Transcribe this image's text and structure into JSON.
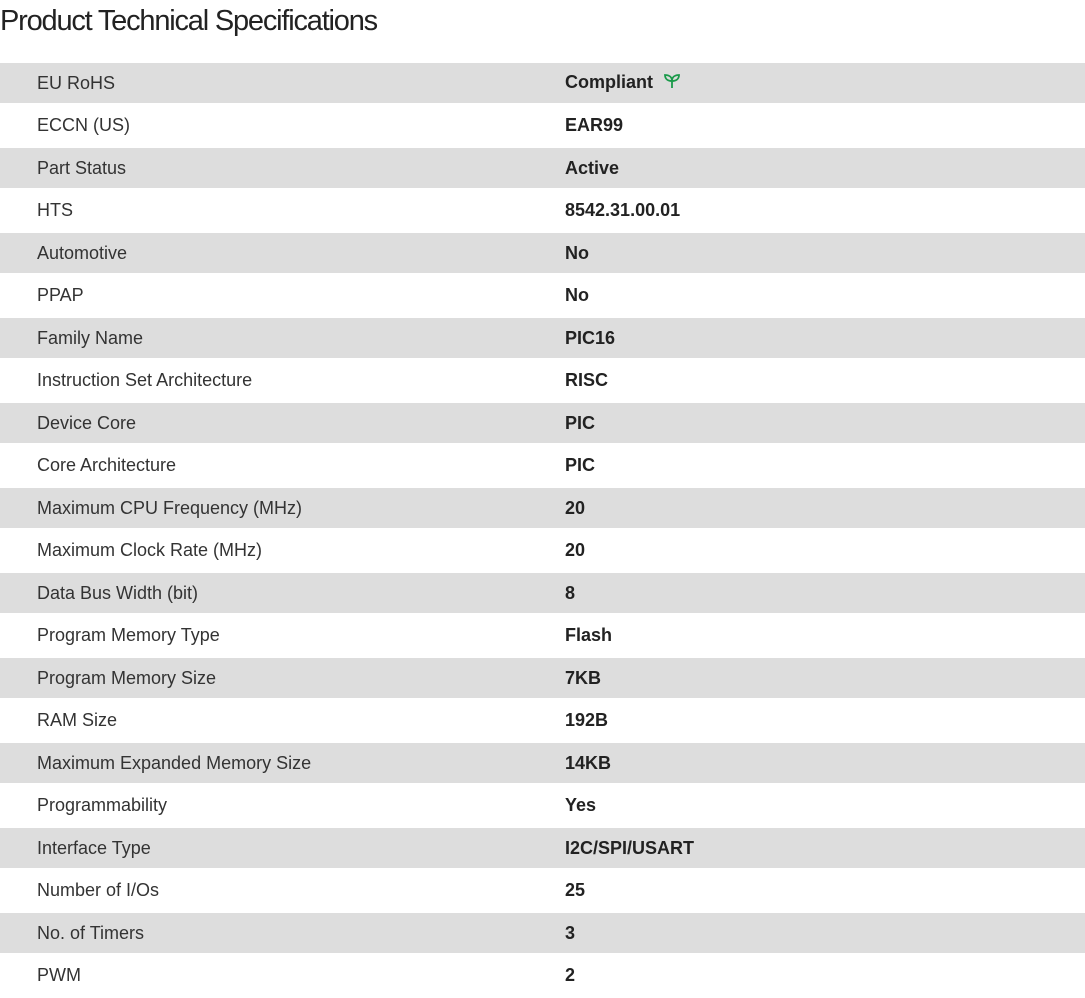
{
  "title": "Product Technical Specifications",
  "colors": {
    "row_alt": "#dddddd",
    "compliant_icon": "#1a9a4a"
  },
  "specs": [
    {
      "label": "EU RoHS",
      "value": "Compliant",
      "icon": "leaf-icon"
    },
    {
      "label": "ECCN (US)",
      "value": "EAR99"
    },
    {
      "label": "Part Status",
      "value": "Active"
    },
    {
      "label": "HTS",
      "value": "8542.31.00.01"
    },
    {
      "label": "Automotive",
      "value": "No"
    },
    {
      "label": "PPAP",
      "value": "No"
    },
    {
      "label": "Family Name",
      "value": "PIC16"
    },
    {
      "label": "Instruction Set Architecture",
      "value": "RISC"
    },
    {
      "label": "Device Core",
      "value": "PIC"
    },
    {
      "label": "Core Architecture",
      "value": "PIC"
    },
    {
      "label": "Maximum CPU Frequency (MHz)",
      "value": "20"
    },
    {
      "label": "Maximum Clock Rate (MHz)",
      "value": "20"
    },
    {
      "label": "Data Bus Width (bit)",
      "value": "8"
    },
    {
      "label": "Program Memory Type",
      "value": "Flash"
    },
    {
      "label": "Program Memory Size",
      "value": "7KB"
    },
    {
      "label": "RAM Size",
      "value": "192B"
    },
    {
      "label": "Maximum Expanded Memory Size",
      "value": "14KB"
    },
    {
      "label": "Programmability",
      "value": "Yes"
    },
    {
      "label": "Interface Type",
      "value": "I2C/SPI/USART"
    },
    {
      "label": "Number of I/Os",
      "value": "25"
    },
    {
      "label": "No. of Timers",
      "value": "3"
    },
    {
      "label": "PWM",
      "value": "2"
    }
  ]
}
